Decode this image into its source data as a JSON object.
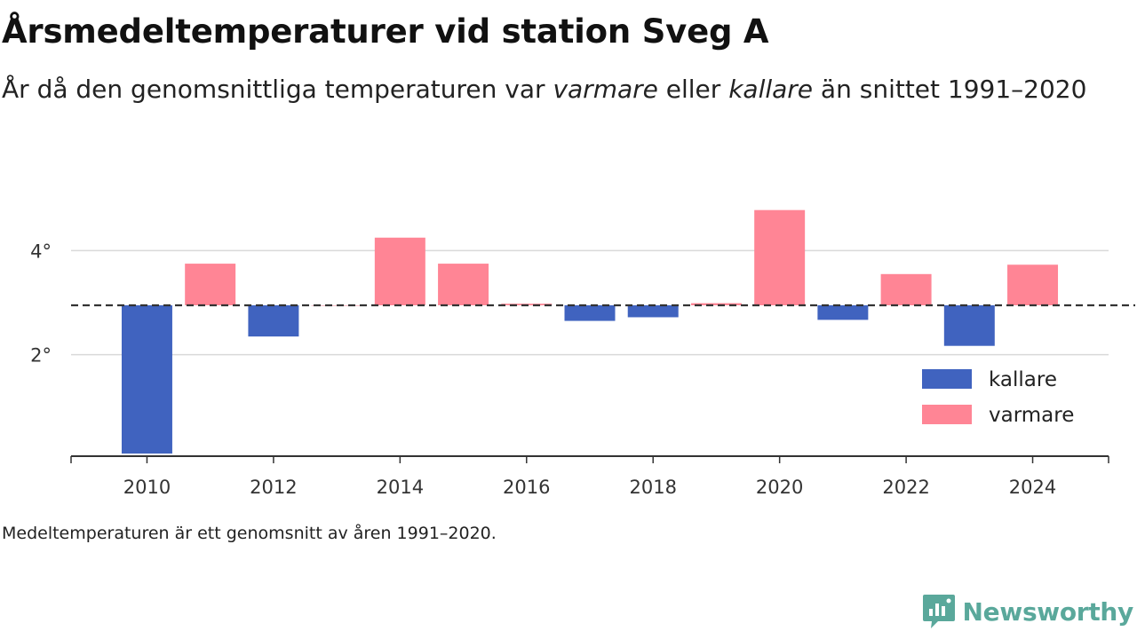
{
  "header": {
    "title": "Årsmedeltemperaturer vid station Sveg A",
    "subtitle_pre": "År då den genomsnittliga temperaturen var ",
    "subtitle_warm": "varmare",
    "subtitle_mid": " eller ",
    "subtitle_cold": "kallare",
    "subtitle_post": " än snittet 1991–2020"
  },
  "footnote": "Medeltemperaturen är ett genomsnitt av åren 1991–2020.",
  "brand": {
    "name": "Newsworthy",
    "color": "#5aa89b"
  },
  "chart_data": {
    "type": "bar",
    "baseline": 2.95,
    "baseline_style": "dashed",
    "x": [
      2010,
      2011,
      2012,
      2013,
      2014,
      2015,
      2016,
      2017,
      2018,
      2019,
      2020,
      2021,
      2022,
      2023,
      2024
    ],
    "values": [
      0.1,
      3.75,
      2.35,
      2.95,
      4.25,
      3.75,
      2.98,
      2.65,
      2.72,
      2.99,
      4.78,
      2.67,
      3.55,
      2.17,
      3.73
    ],
    "x_ticks": [
      "2010",
      "2012",
      "2014",
      "2016",
      "2018",
      "2020",
      "2022",
      "2024"
    ],
    "x_tick_values": [
      2010,
      2012,
      2014,
      2016,
      2018,
      2020,
      2022,
      2024
    ],
    "y_ticks": [
      "2°",
      "4°"
    ],
    "y_tick_values": [
      2,
      4
    ],
    "ylim": [
      0.05,
      5.15
    ],
    "xlim": [
      2008.8,
      2025.2
    ],
    "grid": true,
    "legend": {
      "placement": "bottom-right",
      "items": [
        {
          "name": "kallare",
          "color": "#4063bf"
        },
        {
          "name": "varmare",
          "color": "#ff8595"
        }
      ]
    },
    "colors": {
      "cold": "#4063bf",
      "warm": "#ff8595",
      "grid": "#d9d9d9",
      "axis": "#333333",
      "baseline": "#333333"
    }
  }
}
